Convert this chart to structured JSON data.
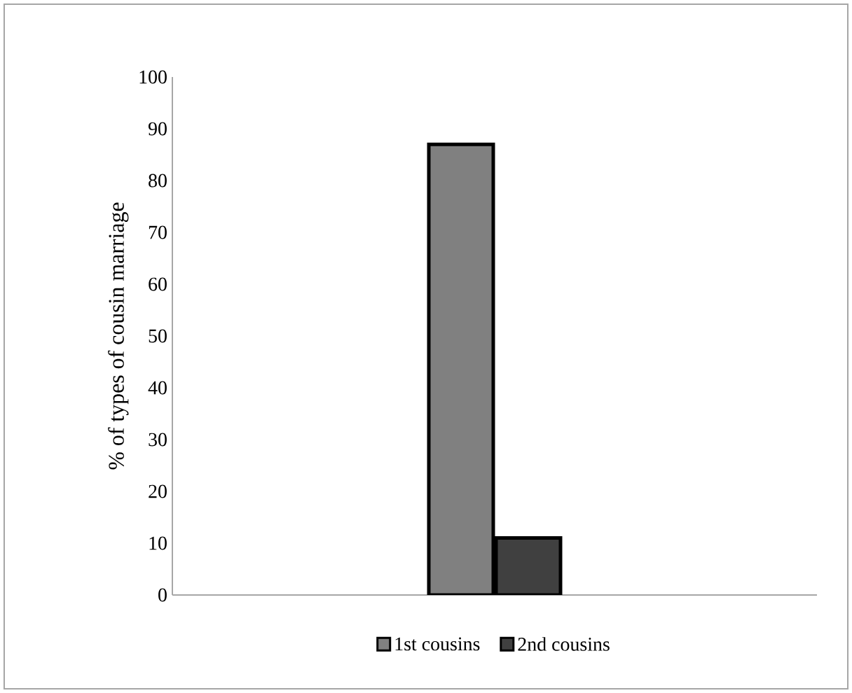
{
  "chart_data": {
    "type": "bar",
    "ylabel": "% of types of cousin marriage",
    "categories": [
      null
    ],
    "series": [
      {
        "name": "1st cousins",
        "color": "#808080",
        "values": [
          87
        ]
      },
      {
        "name": "2nd cousins",
        "color": "#404040",
        "values": [
          11
        ]
      }
    ],
    "ylim": [
      0,
      100
    ],
    "yticks": [
      0,
      10,
      20,
      30,
      40,
      50,
      60,
      70,
      80,
      90,
      100
    ],
    "grid": false,
    "legend": "bottom"
  }
}
